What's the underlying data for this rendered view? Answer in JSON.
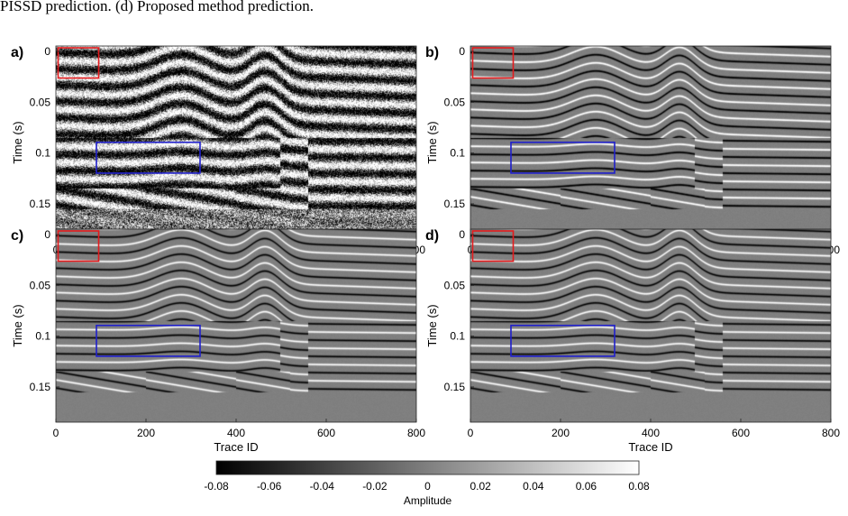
{
  "caption": "PISSD prediction. (d) Proposed method prediction.",
  "chart_data": [
    {
      "type": "heatmap",
      "panel": "a)",
      "xlabel": "Trace ID",
      "ylabel": "Time (s)",
      "xlim": [
        0,
        800
      ],
      "ylim": [
        0,
        0.19
      ],
      "x_ticks": [
        "0",
        "200",
        "400",
        "600",
        "800"
      ],
      "y_ticks": [
        "0",
        "0.05",
        "0.1",
        "0.15"
      ],
      "noise": 0.9,
      "contrast": 1.0,
      "boxes": [
        {
          "color": "#e41a1c",
          "x": [
            5,
            95
          ],
          "y": [
            0,
            0.012
          ]
        },
        {
          "color": "#1f1fcc",
          "x": [
            90,
            320
          ],
          "y": [
            0.093,
            0.118
          ]
        }
      ]
    },
    {
      "type": "heatmap",
      "panel": "b)",
      "xlabel": "Trace ID",
      "ylabel": "Time (s)",
      "xlim": [
        0,
        800
      ],
      "ylim": [
        0,
        0.19
      ],
      "x_ticks": [
        "0",
        "200",
        "400",
        "600",
        "800"
      ],
      "y_ticks": [
        "0",
        "0.05",
        "0.1",
        "0.15"
      ],
      "noise": 0.05,
      "contrast": 0.55,
      "boxes": [
        {
          "color": "#e41a1c",
          "x": [
            5,
            95
          ],
          "y": [
            0,
            0.012
          ]
        },
        {
          "color": "#1f1fcc",
          "x": [
            90,
            320
          ],
          "y": [
            0.093,
            0.118
          ]
        }
      ]
    },
    {
      "type": "heatmap",
      "panel": "c)",
      "xlabel": "Trace ID",
      "ylabel": "Time (s)",
      "xlim": [
        0,
        800
      ],
      "ylim": [
        0,
        0.19
      ],
      "x_ticks": [
        "0",
        "200",
        "400",
        "600",
        "800"
      ],
      "y_ticks": [
        "0",
        "0.05",
        "0.1",
        "0.15"
      ],
      "noise": 0.04,
      "contrast": 0.5,
      "boxes": [
        {
          "color": "#e41a1c",
          "x": [
            5,
            95
          ],
          "y": [
            0,
            0.012
          ]
        },
        {
          "color": "#1f1fcc",
          "x": [
            90,
            320
          ],
          "y": [
            0.093,
            0.118
          ]
        }
      ]
    },
    {
      "type": "heatmap",
      "panel": "d)",
      "xlabel": "Trace ID",
      "ylabel": "Time (s)",
      "xlim": [
        0,
        800
      ],
      "ylim": [
        0,
        0.19
      ],
      "x_ticks": [
        "0",
        "200",
        "400",
        "600",
        "800"
      ],
      "y_ticks": [
        "0",
        "0.05",
        "0.1",
        "0.15"
      ],
      "noise": 0.04,
      "contrast": 0.5,
      "boxes": [
        {
          "color": "#e41a1c",
          "x": [
            5,
            95
          ],
          "y": [
            0,
            0.012
          ]
        },
        {
          "color": "#1f1fcc",
          "x": [
            90,
            320
          ],
          "y": [
            0.093,
            0.118
          ]
        }
      ]
    }
  ],
  "colorbar": {
    "label": "Amplitude",
    "range": [
      -0.08,
      0.08
    ],
    "ticks": [
      "-0.08",
      "-0.06",
      "-0.04",
      "-0.02",
      "0",
      "0.02",
      "0.04",
      "0.06",
      "0.08"
    ]
  }
}
